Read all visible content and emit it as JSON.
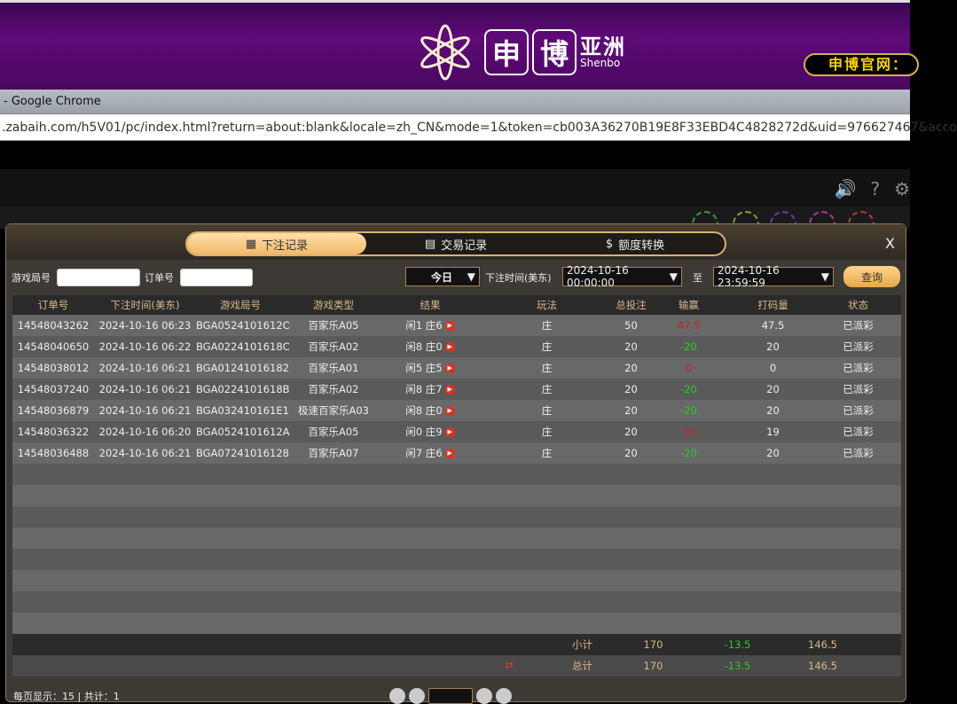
{
  "banner": {
    "brand_cn": "申博亚洲",
    "box1": "申",
    "box2": "博",
    "sub_cn": "亚洲",
    "sub_en": "Shenbo",
    "site_label": "申博官网："
  },
  "browser": {
    "title": "- Google Chrome",
    "url": ".zabaih.com/h5V01/pc/index.html?return=about:blank&locale=zh_CN&mode=1&token=cb003A36270B19E8F33EBD4C4828272d&uid=976627467&acco"
  },
  "modal": {
    "tabs": [
      {
        "label": "下注记录",
        "active": true
      },
      {
        "label": "交易记录"
      },
      {
        "label": "额度转换"
      }
    ],
    "close": "X",
    "filters": {
      "game_no_label": "游戏局号",
      "game_no_value": "",
      "order_no_label": "订单号",
      "order_no_value": "",
      "period": "今日",
      "time_label": "下注时间(美东)",
      "from": "2024-10-16 00:00:00",
      "to_label": "至",
      "to": "2024-10-16 23:59:59",
      "query": "查询"
    },
    "columns": [
      "订单号",
      "下注时间(美东)",
      "游戏局号",
      "游戏类型",
      "结果",
      "玩法",
      "总投注",
      "输赢",
      "打码量",
      "状态"
    ],
    "rows": [
      [
        "14548043262",
        "2024-10-16 06:23",
        "BGA0524101612C",
        "百家乐A05",
        "闲1 庄6",
        "庄",
        "50",
        "47.5",
        "47.5",
        "已派彩"
      ],
      [
        "14548040650",
        "2024-10-16 06:22",
        "BGA0224101618C",
        "百家乐A02",
        "闲8 庄0",
        "庄",
        "20",
        "-20",
        "20",
        "已派彩"
      ],
      [
        "14548038012",
        "2024-10-16 06:21",
        "BGA01241016182",
        "百家乐A01",
        "闲5 庄5",
        "庄",
        "20",
        "0",
        "0",
        "已派彩"
      ],
      [
        "14548037240",
        "2024-10-16 06:21",
        "BGA0224101618B",
        "百家乐A02",
        "闲8 庄7",
        "庄",
        "20",
        "-20",
        "20",
        "已派彩"
      ],
      [
        "14548036879",
        "2024-10-16 06:21",
        "BGA032410161E1",
        "极速百家乐A03",
        "闲8 庄0",
        "庄",
        "20",
        "-20",
        "20",
        "已派彩"
      ],
      [
        "14548036322",
        "2024-10-16 06:20",
        "BGA0524101612A",
        "百家乐A05",
        "闲0 庄9",
        "庄",
        "20",
        "19",
        "19",
        "已派彩"
      ],
      [
        "14548036488",
        "2024-10-16 06:21",
        "BGA07241016128",
        "百家乐A07",
        "闲7 庄6",
        "庄",
        "20",
        "-20",
        "20",
        "已派彩"
      ]
    ],
    "subtotal": {
      "label": "小计",
      "bet": "170",
      "winloss": "-13.5",
      "turnover": "146.5"
    },
    "total": {
      "label": "总计",
      "bet": "170",
      "winloss": "-13.5",
      "turnover": "146.5"
    },
    "footer": "每页显示：15 | 共计：1"
  },
  "colors": {
    "win": "#2ecc1f",
    "loss": "#c92020",
    "accent": "#f1b868"
  }
}
